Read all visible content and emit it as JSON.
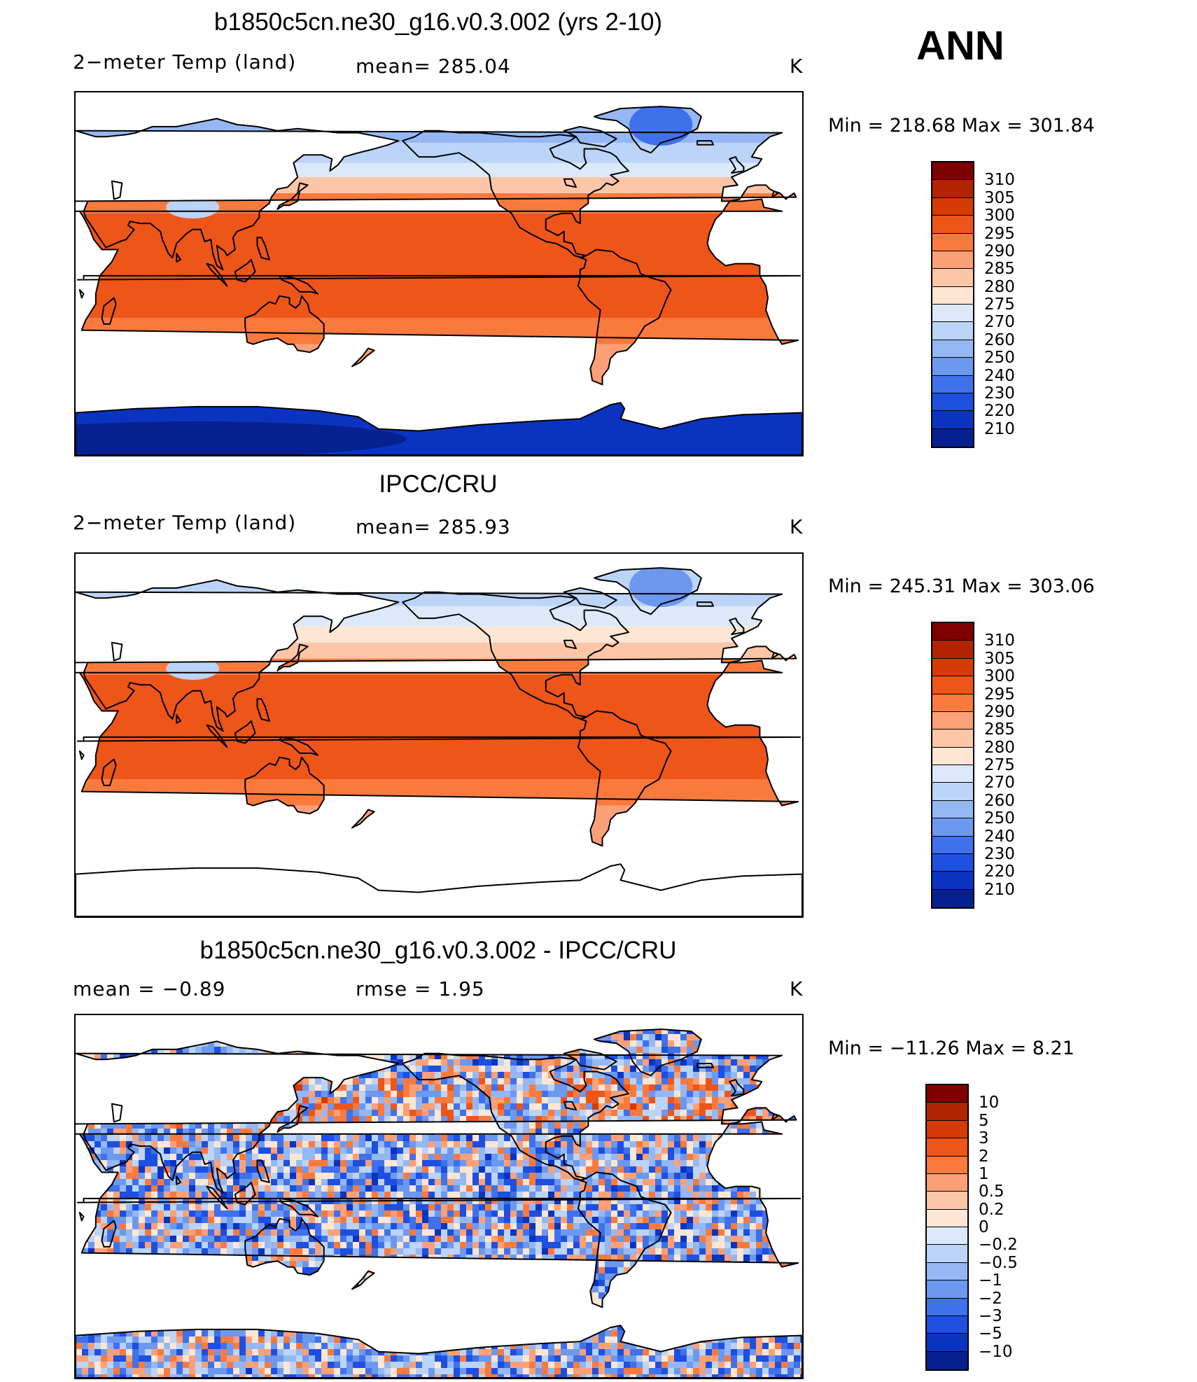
{
  "season": "ANN",
  "panels": [
    {
      "title": "b1850c5cn.ne30_g16.v0.3.002 (yrs 2-10)",
      "left_label": "2−meter Temp  (land)",
      "center_label": "mean=  285.04",
      "units": "K",
      "range_label": "Min  =  218.68  Max  =  301.84",
      "map_style": "model",
      "colorbar": {
        "levels": [
          "310",
          "305",
          "300",
          "295",
          "290",
          "285",
          "280",
          "275",
          "270",
          "260",
          "250",
          "240",
          "230",
          "220",
          "210"
        ],
        "colors": [
          "#7f0000",
          "#b22400",
          "#d63a05",
          "#ee5519",
          "#fa7a3e",
          "#fca077",
          "#fdc6a6",
          "#fee6d5",
          "#dbe9fb",
          "#bcd4f7",
          "#95b8f4",
          "#6c98f0",
          "#3f71ec",
          "#1d4fe0",
          "#0a34c0",
          "#06208f"
        ]
      }
    },
    {
      "title": "IPCC/CRU",
      "left_label": "2−meter Temp  (land)",
      "center_label": "mean=  285.93",
      "units": "K",
      "range_label": "Min  =  245.31  Max  =  303.06",
      "map_style": "obs",
      "colorbar": {
        "levels": [
          "310",
          "305",
          "300",
          "295",
          "290",
          "285",
          "280",
          "275",
          "270",
          "260",
          "250",
          "240",
          "230",
          "220",
          "210"
        ],
        "colors": [
          "#7f0000",
          "#b22400",
          "#d63a05",
          "#ee5519",
          "#fa7a3e",
          "#fca077",
          "#fdc6a6",
          "#fee6d5",
          "#dbe9fb",
          "#bcd4f7",
          "#95b8f4",
          "#6c98f0",
          "#3f71ec",
          "#1d4fe0",
          "#0a34c0",
          "#06208f"
        ]
      }
    },
    {
      "title": "b1850c5cn.ne30_g16.v0.3.002 - IPCC/CRU",
      "left_label": "mean  =    −0.89",
      "center_label": "rmse  =     1.95",
      "units": "K",
      "range_label": "Min  =  −11.26  Max  =      8.21",
      "map_style": "diff",
      "colorbar": {
        "levels": [
          "10",
          "5",
          "3",
          "2",
          "1",
          "0.5",
          "0.2",
          "0",
          "−0.2",
          "−0.5",
          "−1",
          "−2",
          "−3",
          "−5",
          "−10"
        ],
        "colors": [
          "#7f0000",
          "#b22400",
          "#d63a05",
          "#ee5519",
          "#fa7a3e",
          "#fca077",
          "#fdc6a6",
          "#fee6d5",
          "#dbe9fb",
          "#bcd4f7",
          "#95b8f4",
          "#6c98f0",
          "#3f71ec",
          "#1d4fe0",
          "#0a34c0",
          "#06208f"
        ]
      }
    }
  ]
}
